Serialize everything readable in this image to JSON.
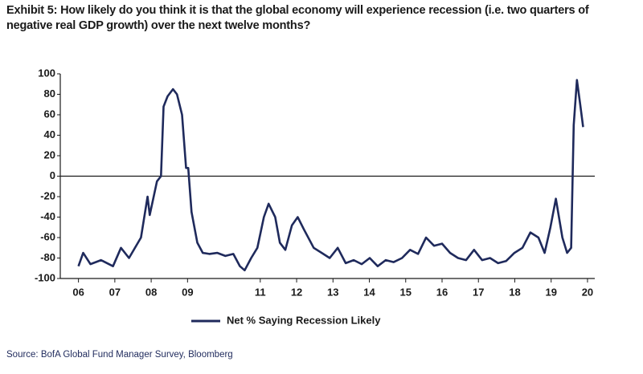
{
  "chart_data": {
    "type": "line",
    "title": "Exhibit 5: How likely do you think it is that the global economy will experience recession (i.e. two quarters of negative real GDP growth) over the next twelve months?",
    "source": "Source: BofA Global Fund Manager Survey, Bloomberg",
    "x": [
      2006.5,
      2006.63,
      2006.83,
      2007.12,
      2007.45,
      2007.67,
      2007.89,
      2008.22,
      2008.4,
      2008.46,
      2008.66,
      2008.77,
      2008.84,
      2008.95,
      2009.1,
      2009.21,
      2009.35,
      2009.46,
      2009.52,
      2009.61,
      2009.77,
      2009.92,
      2010.1,
      2010.32,
      2010.54,
      2010.76,
      2010.94,
      2011.07,
      2011.25,
      2011.42,
      2011.6,
      2011.73,
      2011.91,
      2012.04,
      2012.19,
      2012.37,
      2012.53,
      2012.7,
      2012.97,
      2013.19,
      2013.41,
      2013.63,
      2013.85,
      2014.07,
      2014.29,
      2014.51,
      2014.73,
      2014.95,
      2015.17,
      2015.4,
      2015.62,
      2015.84,
      2016.06,
      2016.28,
      2016.5,
      2016.72,
      2016.94,
      2017.16,
      2017.38,
      2017.6,
      2017.82,
      2018.04,
      2018.26,
      2018.49,
      2018.71,
      2018.93,
      2019.15,
      2019.32,
      2019.48,
      2019.63,
      2019.81,
      2019.94,
      2020.05,
      2020.12,
      2020.21,
      2020.3,
      2020.38
    ],
    "series": [
      {
        "name": "Net % Saying Recession Likely",
        "color": "#1f2a5c",
        "values": [
          -88,
          -75,
          -86,
          -82,
          -88,
          -70,
          -80,
          -60,
          -20,
          -38,
          -5,
          0,
          68,
          78,
          85,
          80,
          60,
          8,
          8,
          -35,
          -65,
          -75,
          -76,
          -75,
          -78,
          -76,
          -88,
          -92,
          -80,
          -70,
          -40,
          -27,
          -40,
          -65,
          -72,
          -48,
          -40,
          -52,
          -70,
          -75,
          -80,
          -70,
          -85,
          -82,
          -86,
          -80,
          -88,
          -82,
          -84,
          -80,
          -72,
          -76,
          -60,
          -68,
          -66,
          -75,
          -80,
          -82,
          -72,
          -82,
          -80,
          -85,
          -83,
          -75,
          -70,
          -55,
          -60,
          -75,
          -50,
          -22,
          -60,
          -75,
          -70,
          50,
          94,
          70,
          48
        ]
      }
    ],
    "xlim": [
      2006,
      2020.7
    ],
    "xticks": [
      {
        "value": 2006.5,
        "label": "06"
      },
      {
        "value": 2007.5,
        "label": "07"
      },
      {
        "value": 2008.5,
        "label": "08"
      },
      {
        "value": 2009.5,
        "label": "09"
      },
      {
        "value": 2011.5,
        "label": "11"
      },
      {
        "value": 2012.5,
        "label": "12"
      },
      {
        "value": 2013.5,
        "label": "13"
      },
      {
        "value": 2014.5,
        "label": "14"
      },
      {
        "value": 2015.5,
        "label": "15"
      },
      {
        "value": 2016.5,
        "label": "16"
      },
      {
        "value": 2017.5,
        "label": "17"
      },
      {
        "value": 2018.5,
        "label": "18"
      },
      {
        "value": 2019.5,
        "label": "19"
      },
      {
        "value": 2020.5,
        "label": "20"
      }
    ],
    "ylim": [
      -100,
      100
    ],
    "yticks": [
      100,
      80,
      60,
      40,
      20,
      0,
      -20,
      -40,
      -60,
      -80,
      -100
    ],
    "legend": "bottom"
  }
}
